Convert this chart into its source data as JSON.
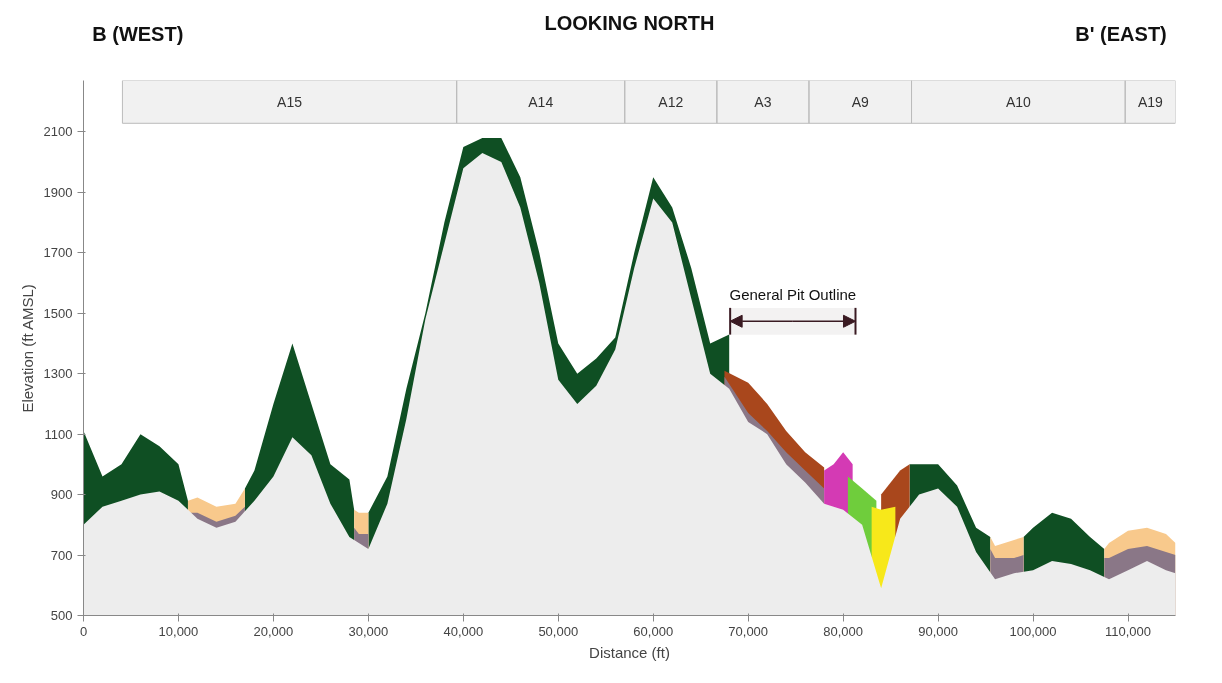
{
  "chart_data": {
    "type": "area",
    "title": "LOOKING NORTH",
    "xlabel": "Distance (ft)",
    "ylabel": "Elevation (ft AMSL)",
    "annotations": [
      "B (WEST)",
      "B' (EAST)"
    ],
    "series": [
      {
        "color": "#0f4f23",
        "x": [
          0,
          2000,
          4000,
          6000,
          8000,
          10000,
          11000,
          14000,
          17000,
          18000,
          20000,
          22000,
          24000,
          26000,
          28000,
          28500,
          29000,
          30000,
          32000,
          34000,
          36000,
          38000,
          40000,
          42000,
          44000,
          46000,
          48000,
          50000,
          52000,
          54000,
          56000,
          58000,
          60000,
          62000,
          64000,
          66000,
          68000,
          70000,
          87000,
          88000,
          90000,
          92000,
          94000,
          95500,
          97000,
          99000,
          100000,
          102000,
          104000,
          106000,
          107500
        ],
        "values": [
          1110,
          960,
          1000,
          1100,
          1060,
          1000,
          880,
          null,
          920,
          980,
          1200,
          1400,
          1200,
          1000,
          950,
          850,
          null,
          840,
          960,
          1250,
          1500,
          1800,
          2050,
          2080,
          2080,
          1950,
          1700,
          1400,
          1300,
          1350,
          1420,
          1700,
          1950,
          1850,
          1650,
          1400,
          1430,
          null,
          1000,
          1000,
          1000,
          930,
          790,
          760,
          null,
          760,
          790,
          840,
          820,
          760,
          720
        ]
      },
      {
        "color": "#f8c98c",
        "x": [
          11000,
          12000,
          14000,
          16000,
          17000,
          17500,
          28500,
          29000,
          30000,
          30500,
          95500,
          96000,
          98000,
          99000,
          99500,
          107500,
          108000,
          110000,
          112000,
          114000,
          115000
        ],
        "values": [
          880,
          890,
          860,
          870,
          920,
          null,
          850,
          840,
          840,
          null,
          760,
          730,
          750,
          760,
          null,
          720,
          740,
          780,
          790,
          770,
          740
        ]
      },
      {
        "color": "#a9471c",
        "x": [
          67500,
          70000,
          72000,
          74000,
          76000,
          78000,
          80000,
          82000,
          84000,
          86000,
          87000
        ],
        "values": [
          1310,
          1270,
          1200,
          1110,
          1040,
          990,
          null,
          null,
          900,
          980,
          1000
        ]
      },
      {
        "color": "#8a7787",
        "x": [
          11000,
          12000,
          14000,
          16000,
          17000,
          17500,
          28500,
          29000,
          30000,
          30500,
          67500,
          70000,
          72000,
          74000,
          76000,
          78000,
          80000,
          95500,
          96000,
          98000,
          99000,
          99500,
          107500,
          108000,
          110000,
          112000,
          114000,
          115000
        ],
        "values": [
          840,
          840,
          810,
          830,
          860,
          null,
          790,
          770,
          770,
          null,
          1290,
          1170,
          1110,
          1040,
          980,
          920,
          null,
          720,
          690,
          690,
          700,
          null,
          690,
          690,
          720,
          730,
          710,
          700
        ]
      },
      {
        "color": "#d43ab4",
        "x": [
          78000,
          79000,
          80000,
          81000
        ],
        "values": [
          980,
          1000,
          1040,
          1000
        ]
      },
      {
        "color": "#6fcd3c",
        "x": [
          80500,
          82000,
          83500
        ],
        "values": [
          960,
          920,
          880
        ]
      },
      {
        "color": "#f7e81a",
        "x": [
          83000,
          84000,
          85500
        ],
        "values": [
          860,
          850,
          860
        ]
      },
      {
        "color": "#ededed",
        "x": [
          0,
          2000,
          4000,
          6000,
          8000,
          10000,
          12000,
          14000,
          16000,
          18000,
          20000,
          22000,
          24000,
          26000,
          28000,
          30000,
          32000,
          34000,
          36000,
          38000,
          40000,
          42000,
          44000,
          46000,
          48000,
          50000,
          52000,
          54000,
          56000,
          58000,
          60000,
          62000,
          64000,
          66000,
          68000,
          70000,
          72000,
          74000,
          76000,
          78000,
          80000,
          82000,
          84000,
          86000,
          88000,
          90000,
          92000,
          94000,
          96000,
          98000,
          100000,
          102000,
          104000,
          106000,
          108000,
          110000,
          112000,
          114000,
          115000
        ],
        "values": [
          800,
          860,
          880,
          900,
          910,
          880,
          820,
          790,
          810,
          880,
          960,
          1090,
          1030,
          870,
          760,
          720,
          870,
          1150,
          1480,
          1730,
          1980,
          2030,
          2000,
          1850,
          1600,
          1280,
          1200,
          1260,
          1380,
          1650,
          1880,
          1800,
          1550,
          1300,
          1250,
          1140,
          1100,
          1000,
          940,
          870,
          850,
          800,
          590,
          820,
          900,
          920,
          860,
          710,
          620,
          640,
          650,
          680,
          670,
          650,
          620,
          650,
          680,
          650,
          640
        ]
      }
    ],
    "bands": [
      {
        "axis": "x",
        "from": 4100,
        "to": 39300,
        "label": "A15",
        "color": "#bbbbbb"
      },
      {
        "axis": "x",
        "from": 39300,
        "to": 57000,
        "label": "A14",
        "color": "#bbbbbb"
      },
      {
        "axis": "x",
        "from": 57000,
        "to": 66700,
        "label": "A12",
        "color": "#bbbbbb"
      },
      {
        "axis": "x",
        "from": 66700,
        "to": 76400,
        "label": "A3",
        "color": "#bbbbbb"
      },
      {
        "axis": "x",
        "from": 76400,
        "to": 87200,
        "label": "A9",
        "color": "#bbbbbb"
      },
      {
        "axis": "x",
        "from": 87200,
        "to": 109700,
        "label": "A10",
        "color": "#bbbbbb"
      },
      {
        "axis": "x",
        "from": 109700,
        "to": 115000,
        "label": "A19",
        "color": "#bbbbbb"
      },
      {
        "axis": "x",
        "from": 68100,
        "to": 81300,
        "label": "General Pit Outline"
      }
    ],
    "xlim": [
      0,
      115000
    ],
    "ylim": [
      500,
      2270
    ],
    "xticks": [
      0,
      {
        "value": 10000,
        "label": "10,000"
      },
      {
        "value": 20000,
        "label": "20,000"
      },
      {
        "value": 30000,
        "label": "30,000"
      },
      {
        "value": 40000,
        "label": "40,000"
      },
      {
        "value": 50000,
        "label": "50,000"
      },
      {
        "value": 60000,
        "label": "60,000"
      },
      {
        "value": 70000,
        "label": "70,000"
      },
      {
        "value": 80000,
        "label": "80,000"
      },
      {
        "value": 90000,
        "label": "90,000"
      },
      {
        "value": 100000,
        "label": "100,000"
      },
      {
        "value": 110000,
        "label": "110,000"
      }
    ],
    "yticks": [
      500,
      700,
      900,
      1100,
      1300,
      1500,
      1700,
      1900,
      2100
    ],
    "grid": false
  }
}
